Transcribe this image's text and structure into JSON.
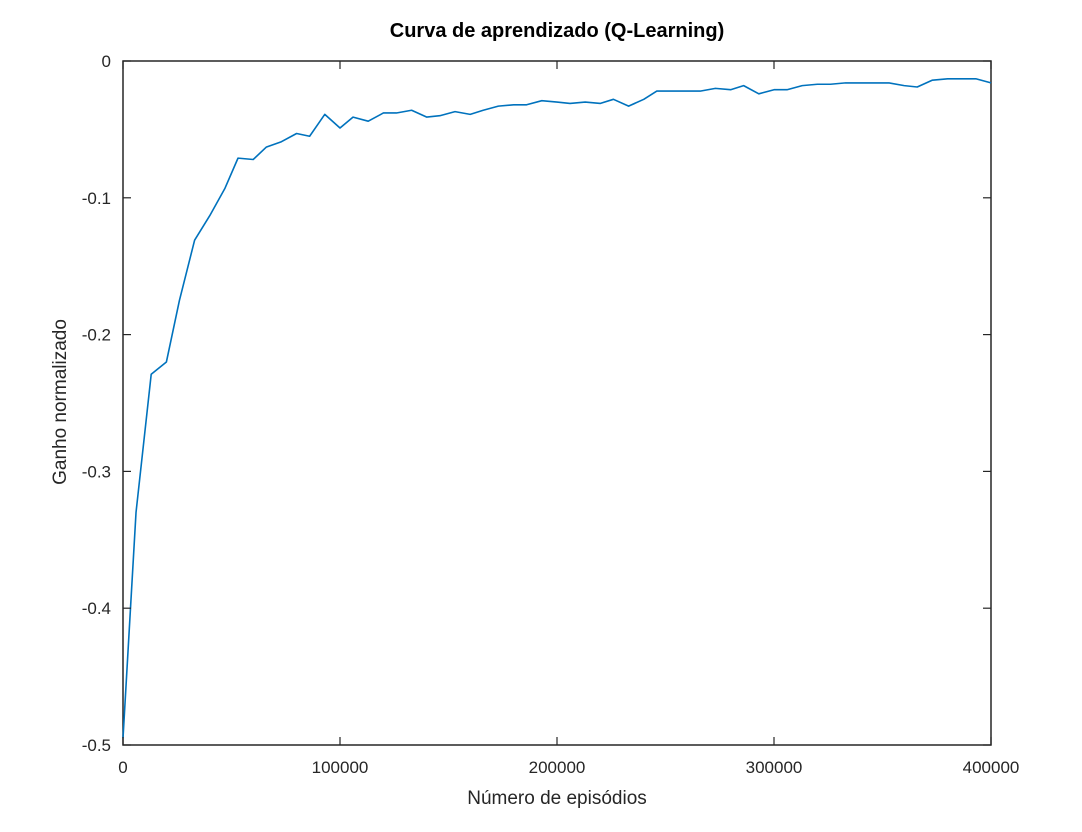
{
  "chart_data": {
    "type": "line",
    "title": "Curva de aprendizado (Q-Learning)",
    "xlabel": "Número de episódios",
    "ylabel": "Ganho normalizado",
    "xlim": [
      0,
      400000
    ],
    "ylim": [
      -0.5,
      0
    ],
    "grid": false,
    "xticks": [
      0,
      100000,
      200000,
      300000,
      400000
    ],
    "xtick_labels": [
      "0",
      "100000",
      "200000",
      "300000",
      "400000"
    ],
    "yticks": [
      0,
      -0.1,
      -0.2,
      -0.3,
      -0.4,
      -0.5
    ],
    "ytick_labels": [
      "0",
      "-0.1",
      "-0.2",
      "-0.3",
      "-0.4",
      "-0.5"
    ],
    "line_color": "#0072bd",
    "series": [
      {
        "x": [
          0,
          6000,
          13000,
          20000,
          26000,
          33000,
          40000,
          47000,
          53000,
          60000,
          66000,
          73000,
          80000,
          86000,
          93000,
          100000,
          106000,
          113000,
          120000,
          126000,
          133000,
          140000,
          146000,
          153000,
          160000,
          166000,
          173000,
          180000,
          186000,
          193000,
          200000,
          206000,
          213000,
          220000,
          226000,
          233000,
          240000,
          246000,
          253000,
          260000,
          266000,
          273000,
          280000,
          286000,
          293000,
          300000,
          306000,
          313000,
          320000,
          326000,
          333000,
          340000,
          346000,
          353000,
          360000,
          366000,
          373000,
          380000,
          386000,
          393000,
          400000
        ],
        "y": [
          -0.495,
          -0.33,
          -0.229,
          -0.22,
          -0.175,
          -0.131,
          -0.113,
          -0.093,
          -0.071,
          -0.072,
          -0.063,
          -0.059,
          -0.053,
          -0.055,
          -0.039,
          -0.049,
          -0.041,
          -0.044,
          -0.038,
          -0.038,
          -0.036,
          -0.041,
          -0.04,
          -0.037,
          -0.039,
          -0.036,
          -0.033,
          -0.032,
          -0.032,
          -0.029,
          -0.03,
          -0.031,
          -0.03,
          -0.031,
          -0.028,
          -0.033,
          -0.028,
          -0.022,
          -0.022,
          -0.022,
          -0.022,
          -0.02,
          -0.021,
          -0.018,
          -0.024,
          -0.021,
          -0.021,
          -0.018,
          -0.017,
          -0.017,
          -0.016,
          -0.016,
          -0.016,
          -0.016,
          -0.018,
          -0.019,
          -0.014,
          -0.013,
          -0.013,
          -0.013,
          -0.016
        ]
      }
    ]
  }
}
